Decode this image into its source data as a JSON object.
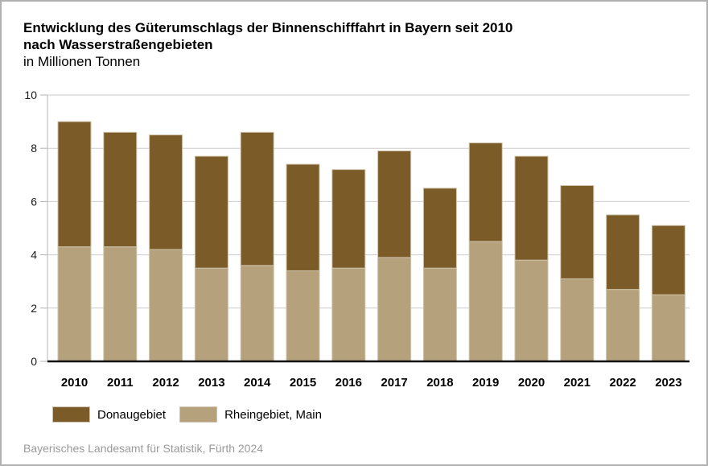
{
  "header": {
    "title_line1": "Entwicklung des Güterumschlags der Binnenschifffahrt in Bayern seit 2010",
    "title_line2": "nach Wasserstraßengebieten",
    "subtitle": "in Millionen Tonnen"
  },
  "legend": {
    "items": [
      {
        "label": "Donaugebiet",
        "color": "#7B5C28"
      },
      {
        "label": "Rheingebiet, Main",
        "color": "#B6A17D"
      }
    ]
  },
  "footer": {
    "source": "Bayerisches Landesamt für Statistik, Fürth 2024"
  },
  "chart_data": {
    "type": "bar",
    "stacked": true,
    "title": "Entwicklung des Güterumschlags der Binnenschifffahrt in Bayern seit 2010 nach Wasserstraßengebieten",
    "subtitle": "in Millionen Tonnen",
    "categories": [
      "2010",
      "2011",
      "2012",
      "2013",
      "2014",
      "2015",
      "2016",
      "2017",
      "2018",
      "2019",
      "2020",
      "2021",
      "2022",
      "2023"
    ],
    "series": [
      {
        "name": "Donaugebiet",
        "color": "#7B5C28",
        "values": [
          4.7,
          4.3,
          4.3,
          4.2,
          5.0,
          4.0,
          3.7,
          4.0,
          3.0,
          3.7,
          3.9,
          3.5,
          2.8,
          2.6
        ]
      },
      {
        "name": "Rheingebiet, Main",
        "color": "#B6A17D",
        "values": [
          4.3,
          4.3,
          4.2,
          3.5,
          3.6,
          3.4,
          3.5,
          3.9,
          3.5,
          4.5,
          3.8,
          3.1,
          2.7,
          2.5
        ]
      }
    ],
    "stack_order_bottom_to_top": [
      "Rheingebiet, Main",
      "Donaugebiet"
    ],
    "totals": [
      9.0,
      8.6,
      8.5,
      7.7,
      8.6,
      7.4,
      7.2,
      7.9,
      6.5,
      8.2,
      7.7,
      6.6,
      5.5,
      5.1
    ],
    "xlabel": "",
    "ylabel": "",
    "ylim": [
      0,
      10
    ],
    "yticks": [
      0,
      2,
      4,
      6,
      8,
      10
    ],
    "grid": true,
    "legend_position": "bottom",
    "bar_outline_color": "#cfc3ab",
    "gridline_color": "#cbcbcb",
    "axis_line_color": "#b4b4b4",
    "baseline_color": "#111111"
  }
}
